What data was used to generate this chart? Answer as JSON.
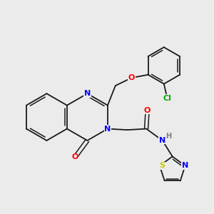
{
  "background_color": "#ebebeb",
  "bond_color": "#1a1a1a",
  "atom_colors": {
    "N": "#0000ff",
    "O": "#ff0000",
    "Cl": "#00aa00",
    "S": "#cccc00",
    "H": "#7a7a7a"
  },
  "figsize": [
    3.0,
    3.0
  ],
  "dpi": 100
}
